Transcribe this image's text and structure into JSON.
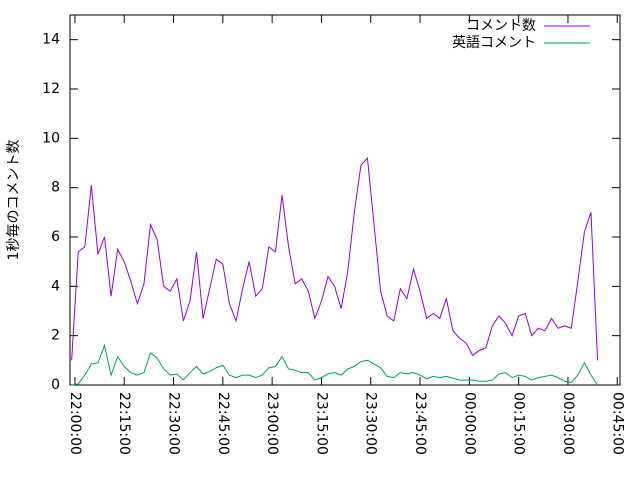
{
  "chart_data": {
    "type": "line",
    "ylabel": "1秒毎のコメント数",
    "x": [
      "21:59:00",
      "22:01:00",
      "22:03:00",
      "22:05:00",
      "22:07:00",
      "22:09:00",
      "22:11:00",
      "22:13:00",
      "22:15:00",
      "22:17:00",
      "22:19:00",
      "22:21:00",
      "22:23:00",
      "22:25:00",
      "22:27:00",
      "22:29:00",
      "22:31:00",
      "22:33:00",
      "22:35:00",
      "22:37:00",
      "22:39:00",
      "22:41:00",
      "22:43:00",
      "22:45:00",
      "22:47:00",
      "22:49:00",
      "22:51:00",
      "22:53:00",
      "22:55:00",
      "22:57:00",
      "22:59:00",
      "23:01:00",
      "23:03:00",
      "23:05:00",
      "23:07:00",
      "23:09:00",
      "23:11:00",
      "23:13:00",
      "23:15:00",
      "23:17:00",
      "23:19:00",
      "23:21:00",
      "23:23:00",
      "23:25:00",
      "23:27:00",
      "23:29:00",
      "23:31:00",
      "23:33:00",
      "23:35:00",
      "23:37:00",
      "23:39:00",
      "23:41:00",
      "23:43:00",
      "23:45:00",
      "23:47:00",
      "23:49:00",
      "23:51:00",
      "23:53:00",
      "23:55:00",
      "23:57:00",
      "23:59:00",
      "00:01:00",
      "00:03:00",
      "00:05:00",
      "00:07:00",
      "00:09:00",
      "00:11:00",
      "00:13:00",
      "00:15:00",
      "00:17:00",
      "00:19:00",
      "00:21:00",
      "00:23:00",
      "00:25:00",
      "00:27:00",
      "00:29:00",
      "00:31:00",
      "00:33:00",
      "00:35:00",
      "00:37:00",
      "00:39:00"
    ],
    "series": [
      {
        "name": "コメント数",
        "color": "#9400d3",
        "values": [
          1.0,
          5.4,
          5.6,
          8.1,
          5.3,
          6.0,
          3.6,
          5.5,
          5.0,
          4.2,
          3.3,
          4.1,
          6.5,
          5.9,
          4.0,
          3.8,
          4.3,
          2.6,
          3.4,
          5.4,
          2.7,
          3.9,
          5.1,
          4.9,
          3.3,
          2.6,
          3.9,
          5.0,
          3.6,
          3.9,
          5.6,
          5.4,
          7.7,
          5.6,
          4.1,
          4.3,
          3.8,
          2.7,
          3.4,
          4.4,
          4.0,
          3.1,
          4.6,
          7.0,
          8.9,
          9.2,
          6.5,
          3.8,
          2.8,
          2.6,
          3.9,
          3.5,
          4.7,
          3.8,
          2.7,
          2.9,
          2.7,
          3.5,
          2.2,
          1.9,
          1.7,
          1.2,
          1.4,
          1.5,
          2.4,
          2.8,
          2.5,
          2.0,
          2.8,
          2.9,
          2.0,
          2.3,
          2.2,
          2.7,
          2.3,
          2.4,
          2.3,
          4.2,
          6.2,
          7.0,
          1.0
        ]
      },
      {
        "name": "英語コメント",
        "color": "#009e73",
        "values": [
          0,
          0.05,
          0.4,
          0.85,
          0.9,
          1.6,
          0.4,
          1.15,
          0.75,
          0.5,
          0.4,
          0.5,
          1.3,
          1.1,
          0.65,
          0.4,
          0.45,
          0.2,
          0.5,
          0.75,
          0.45,
          0.55,
          0.7,
          0.8,
          0.4,
          0.3,
          0.4,
          0.4,
          0.3,
          0.4,
          0.7,
          0.75,
          1.15,
          0.65,
          0.6,
          0.5,
          0.5,
          0.2,
          0.3,
          0.45,
          0.5,
          0.4,
          0.65,
          0.75,
          0.95,
          1.0,
          0.85,
          0.7,
          0.35,
          0.3,
          0.5,
          0.45,
          0.5,
          0.4,
          0.25,
          0.35,
          0.3,
          0.35,
          0.28,
          0.2,
          0.2,
          0.2,
          0.15,
          0.15,
          0.2,
          0.45,
          0.5,
          0.3,
          0.4,
          0.35,
          0.2,
          0.3,
          0.35,
          0.4,
          0.3,
          0.15,
          0.1,
          0.4,
          0.9,
          0.4,
          0
        ]
      }
    ],
    "xlim": [
      "21:58:30",
      "00:45:50"
    ],
    "xticks": [
      "22:00:00",
      "22:15:00",
      "22:30:00",
      "22:45:00",
      "23:00:00",
      "23:15:00",
      "23:30:00",
      "23:45:00",
      "00:00:00",
      "00:15:00",
      "00:30:00",
      "00:45:00"
    ],
    "ylim": [
      0,
      15
    ],
    "yticks": [
      0,
      2,
      4,
      6,
      8,
      10,
      12,
      14
    ],
    "legend": "top-right"
  }
}
